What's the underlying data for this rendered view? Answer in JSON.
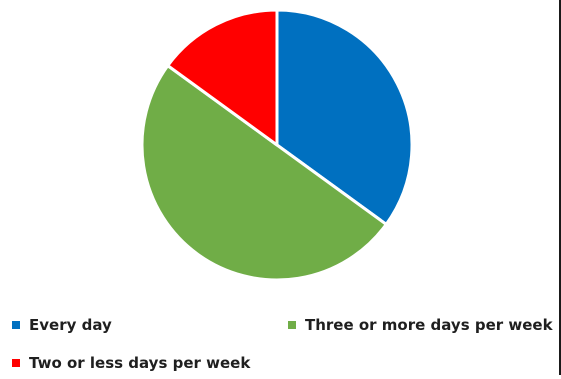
{
  "chart_data": {
    "type": "pie",
    "title": "",
    "slices": [
      {
        "label": "Every day",
        "value": 35,
        "color": "#0070c0"
      },
      {
        "label": "Three or more days per week",
        "value": 50,
        "color": "#70ad47"
      },
      {
        "label": "Two or less days per week",
        "value": 15,
        "color": "#ff0000"
      }
    ],
    "legend_position": "bottom"
  }
}
